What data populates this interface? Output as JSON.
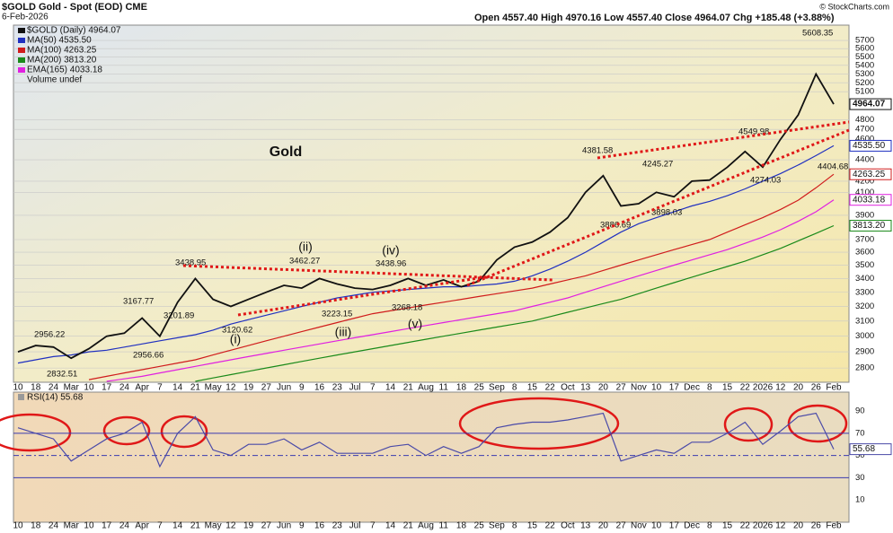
{
  "chart_data": [
    {
      "type": "line",
      "title": "$GOLD Gold - Spot (EOD) CME",
      "date": "6-Feb-2026",
      "quote": "Open 4557.40 High 4970.16 Low 4557.40 Close 4964.07 Chg +185.48 (+3.88%)",
      "credit": "© StockCharts.com",
      "volume_label": "Volume undef",
      "categories": [
        "10",
        "18",
        "24",
        "Mar",
        "10",
        "17",
        "24",
        "Apr",
        "7",
        "14",
        "21",
        "May",
        "12",
        "19",
        "27",
        "Jun",
        "9",
        "16",
        "23",
        "Jul",
        "7",
        "14",
        "21",
        "Aug",
        "11",
        "18",
        "25",
        "Sep",
        "8",
        "15",
        "22",
        "Oct",
        "13",
        "20",
        "27",
        "Nov",
        "10",
        "17",
        "Dec",
        "8",
        "15",
        "22",
        "2026",
        "12",
        "20",
        "26",
        "Feb"
      ],
      "series": [
        {
          "name": "$GOLD (Daily) 4964.07",
          "color": "#111111",
          "values": [
            2900,
            2940,
            2930,
            2860,
            2920,
            3000,
            3020,
            3120,
            3000,
            3230,
            3400,
            3250,
            3200,
            3250,
            3300,
            3350,
            3330,
            3400,
            3360,
            3330,
            3320,
            3350,
            3400,
            3350,
            3390,
            3340,
            3380,
            3540,
            3640,
            3680,
            3760,
            3880,
            4100,
            4250,
            3980,
            4000,
            4100,
            4060,
            4200,
            4210,
            4330,
            4480,
            4330,
            4600,
            4850,
            5300,
            4964.07
          ]
        },
        {
          "name": "MA(50) 4535.50",
          "color": "#2030c0",
          "values": [
            2830,
            2850,
            2870,
            2880,
            2900,
            2910,
            2930,
            2950,
            2970,
            2990,
            3010,
            3040,
            3080,
            3110,
            3140,
            3170,
            3200,
            3230,
            3260,
            3280,
            3300,
            3310,
            3320,
            3330,
            3340,
            3340,
            3350,
            3360,
            3380,
            3420,
            3470,
            3530,
            3600,
            3680,
            3760,
            3830,
            3880,
            3930,
            3980,
            4020,
            4070,
            4130,
            4200,
            4270,
            4350,
            4440,
            4535.5
          ]
        },
        {
          "name": "MA(100) 4263.25",
          "color": "#d01c1c",
          "values": [
            null,
            null,
            null,
            null,
            2730,
            2750,
            2770,
            2790,
            2810,
            2830,
            2850,
            2880,
            2910,
            2940,
            2970,
            3000,
            3030,
            3060,
            3090,
            3120,
            3150,
            3170,
            3190,
            3210,
            3230,
            3250,
            3270,
            3290,
            3310,
            3330,
            3360,
            3390,
            3420,
            3460,
            3500,
            3540,
            3580,
            3620,
            3660,
            3700,
            3760,
            3820,
            3880,
            3950,
            4030,
            4140,
            4263.25
          ]
        },
        {
          "name": "MA(200) 3813.20",
          "color": "#1a8a1a",
          "values": [
            null,
            null,
            null,
            null,
            null,
            null,
            null,
            null,
            null,
            null,
            2720,
            2740,
            2760,
            2780,
            2800,
            2820,
            2840,
            2860,
            2880,
            2900,
            2920,
            2940,
            2960,
            2980,
            3000,
            3020,
            3040,
            3060,
            3080,
            3100,
            3130,
            3160,
            3190,
            3220,
            3250,
            3290,
            3330,
            3370,
            3410,
            3450,
            3490,
            3530,
            3580,
            3630,
            3690,
            3750,
            3813.2
          ]
        },
        {
          "name": "EMA(165) 4033.18",
          "color": "#e020e0",
          "values": [
            null,
            null,
            null,
            null,
            null,
            2720,
            2735,
            2750,
            2770,
            2790,
            2810,
            2830,
            2850,
            2870,
            2890,
            2910,
            2930,
            2950,
            2970,
            2990,
            3010,
            3030,
            3050,
            3070,
            3090,
            3110,
            3130,
            3150,
            3170,
            3200,
            3230,
            3260,
            3300,
            3340,
            3380,
            3420,
            3460,
            3500,
            3540,
            3580,
            3620,
            3670,
            3720,
            3780,
            3850,
            3930,
            4033.18
          ]
        }
      ],
      "axis_tags": [
        "4964.07",
        "4535.50",
        "4263.25",
        "3813.20",
        "4033.18"
      ],
      "log_scale": true,
      "ylim": [
        2720,
        5870
      ],
      "yticks": [
        2800,
        2900,
        3000,
        3100,
        3200,
        3300,
        3400,
        3500,
        3600,
        3700,
        3900,
        4100,
        4200,
        4400,
        4600,
        4700,
        4800,
        5100,
        5200,
        5300,
        5400,
        5500,
        5600,
        5700
      ],
      "grid": true,
      "annotations": [
        "Gold",
        "2956.22",
        "2832.51",
        "3167.77",
        "2956.66",
        "3438.95",
        "3201.89",
        "3120.62",
        "3462.27",
        "3223.15",
        "3438.96",
        "3268.18",
        "4381.58",
        "3886.69",
        "4245.27",
        "3898.03",
        "4549.98",
        "4274.03",
        "5608.35",
        "4404.68",
        "(i)",
        "(ii)",
        "(iii)",
        "(iv)",
        "(v)"
      ]
    },
    {
      "type": "line",
      "title": "RSI(14) 55.68",
      "categories": [
        "10",
        "18",
        "24",
        "Mar",
        "10",
        "17",
        "24",
        "Apr",
        "7",
        "14",
        "21",
        "May",
        "12",
        "19",
        "27",
        "Jun",
        "9",
        "16",
        "23",
        "Jul",
        "7",
        "14",
        "21",
        "Aug",
        "11",
        "18",
        "25",
        "Sep",
        "8",
        "15",
        "22",
        "Oct",
        "13",
        "20",
        "27",
        "Nov",
        "10",
        "17",
        "Dec",
        "8",
        "15",
        "22",
        "2026",
        "12",
        "20",
        "26",
        "Feb"
      ],
      "color": "#4a4aa8",
      "values": [
        75,
        70,
        65,
        45,
        55,
        65,
        70,
        80,
        40,
        70,
        85,
        55,
        50,
        60,
        60,
        65,
        55,
        62,
        52,
        52,
        52,
        58,
        60,
        50,
        58,
        52,
        58,
        75,
        78,
        80,
        80,
        82,
        85,
        88,
        45,
        50,
        55,
        52,
        62,
        62,
        70,
        80,
        60,
        72,
        85,
        88,
        55.68
      ],
      "axis_tags": [
        "55.68"
      ],
      "ylim": [
        -10,
        107
      ],
      "yticks": [
        10,
        30,
        50,
        70,
        90
      ],
      "reference_lines": [
        {
          "value": 70,
          "dashed": false
        },
        {
          "value": 50,
          "dashed": true
        },
        {
          "value": 30,
          "dashed": false
        }
      ]
    }
  ]
}
